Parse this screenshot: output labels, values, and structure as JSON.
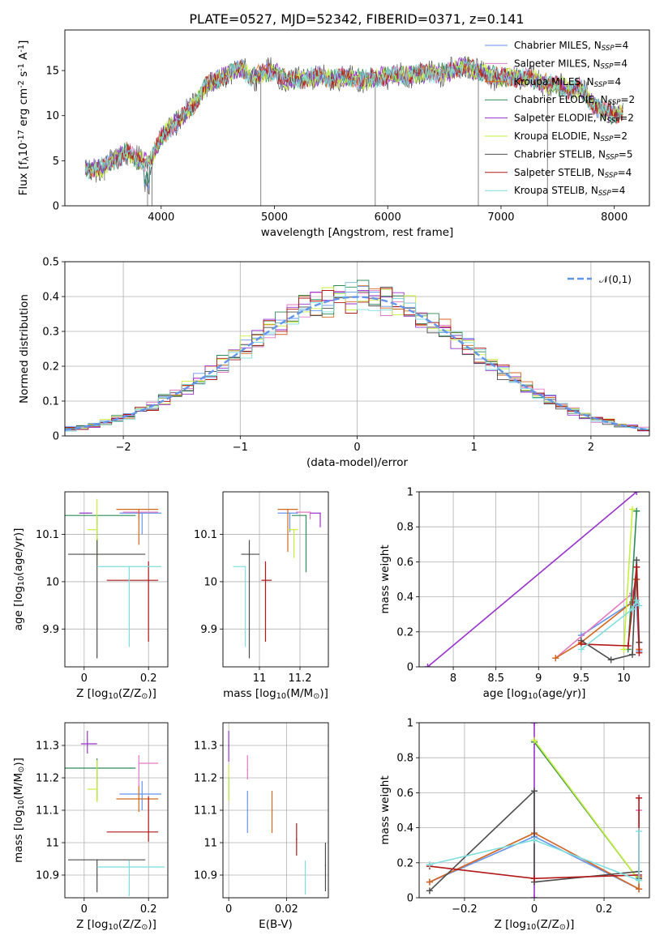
{
  "figure_title": "PLATE=0527, MJD=52342, FIBERID=0371, z=0.141",
  "models": [
    {
      "name": "Chabrier MILES, N$_{SSP}$=4",
      "color": "#6495ed"
    },
    {
      "name": "Salpeter MILES, N$_{SSP}$=4",
      "color": "#e377c2"
    },
    {
      "name": "Kroupa MILES, N$_{SSP}$=4",
      "color": "#d2691e"
    },
    {
      "name": "Chabrier ELODIE, N$_{SSP}$=2",
      "color": "#2e8b57"
    },
    {
      "name": "Salpeter ELODIE, N$_{SSP}$=2",
      "color": "#9932cc"
    },
    {
      "name": "Kroupa ELODIE, N$_{SSP}$=2",
      "color": "#c6f03c"
    },
    {
      "name": "Chabrier STELIB, N$_{SSP}$=5",
      "color": "#4d4d4d"
    },
    {
      "name": "Salpeter STELIB, N$_{SSP}$=4",
      "color": "#b21818"
    },
    {
      "name": "Kroupa STELIB, N$_{SSP}$=4",
      "color": "#7fdede"
    }
  ],
  "chart_data": [
    {
      "id": "spectrum",
      "type": "line",
      "xlabel": "wavelength [Angstrom, rest frame]",
      "ylabel": "Flux [f$_\\lambda$10$^{-17}$ erg cm$^{-2}$ s$^{-1}$ A$^{-1}$]",
      "xlim": [
        3150,
        8310
      ],
      "ylim": [
        0,
        19.5
      ],
      "xticks": [
        4000,
        5000,
        6000,
        7000,
        8000
      ],
      "yticks": [
        0,
        5,
        10,
        15
      ],
      "legend": "top-right",
      "continuum": {
        "x": [
          3330,
          3400,
          3500,
          3600,
          3700,
          3800,
          3900,
          4000,
          4100,
          4200,
          4300,
          4400,
          4500,
          4600,
          4700,
          4800,
          4900,
          5000,
          5100,
          5200,
          5300,
          5400,
          5500,
          5600,
          5700,
          5800,
          5900,
          6000,
          6100,
          6200,
          6300,
          6400,
          6500,
          6600,
          6700,
          6800,
          6900,
          7000,
          7100,
          7200,
          7300,
          7400,
          7500,
          7600,
          7700,
          7800,
          7900,
          8000,
          8080
        ],
        "y": [
          4.1,
          4.1,
          4.3,
          5.2,
          6.0,
          5.0,
          4.9,
          7.6,
          9.0,
          10.0,
          11.3,
          13.4,
          14.0,
          14.7,
          15.2,
          14.2,
          14.7,
          15.0,
          14.0,
          14.0,
          14.1,
          14.4,
          14.1,
          14.2,
          14.2,
          14.0,
          14.2,
          14.5,
          14.4,
          14.4,
          14.7,
          14.7,
          14.8,
          15.1,
          15.6,
          14.7,
          14.5,
          14.2,
          14.3,
          14.2,
          14.0,
          13.6,
          13.3,
          13.0,
          13.1,
          11.4,
          10.5,
          10.1,
          10.5
        ]
      }
    },
    {
      "id": "residuals",
      "type": "histogram",
      "xlabel": "(data-model)/error",
      "ylabel": "Normed distribution",
      "xlim": [
        -2.5,
        2.5
      ],
      "ylim": [
        0,
        0.5
      ],
      "xticks": [
        -2,
        -1,
        0,
        1,
        2
      ],
      "yticks": [
        0.0,
        0.1,
        0.2,
        0.3,
        0.4,
        0.5
      ],
      "grid": true,
      "reference_curve": "$\\mathcal{N}(0,1)$",
      "legend": "top-right"
    },
    {
      "id": "age-vs-Z",
      "type": "scatter",
      "xlabel": "Z [log$_{10}$(Z/Z$_\\odot$)]",
      "ylabel": "age  [log$_{10}$(age/yr)]",
      "xlim": [
        -0.06,
        0.26
      ],
      "ylim": [
        9.82,
        10.19
      ],
      "xticks": [
        0.0,
        0.2
      ],
      "yticks": [
        9.9,
        10.0,
        10.1
      ],
      "grid": true,
      "points": [
        {
          "model": 0,
          "x": 0.18,
          "y": 10.145,
          "xerr": [
            0.07,
            0.06
          ],
          "yerr": [
            0.045,
            0.0
          ]
        },
        {
          "model": 1,
          "x": 0.17,
          "y": 10.147,
          "xerr": [
            0.05,
            0.06
          ],
          "yerr": [
            0.015,
            0.0
          ]
        },
        {
          "model": 2,
          "x": 0.17,
          "y": 10.153,
          "xerr": [
            0.07,
            0.06
          ],
          "yerr": [
            0.075,
            0.0
          ]
        },
        {
          "model": 3,
          "x": 0.04,
          "y": 10.14,
          "xerr": [
            0.1,
            0.12
          ],
          "yerr": [
            0.08,
            0.0
          ]
        },
        {
          "model": 4,
          "x": 0.01,
          "y": 10.145,
          "xerr": [
            0.025,
            0.015
          ],
          "yerr": [
            0.0,
            0.0
          ]
        },
        {
          "model": 5,
          "x": 0.04,
          "y": 10.11,
          "xerr": [
            0.03,
            0.0
          ],
          "yerr": [
            0.08,
            0.065
          ]
        },
        {
          "model": 6,
          "x": 0.04,
          "y": 10.058,
          "xerr": [
            0.09,
            0.15
          ],
          "yerr": [
            0.22,
            0.03
          ]
        },
        {
          "model": 7,
          "x": 0.2,
          "y": 10.003,
          "xerr": [
            0.13,
            0.03
          ],
          "yerr": [
            0.13,
            0.04
          ]
        },
        {
          "model": 8,
          "x": 0.14,
          "y": 10.032,
          "xerr": [
            0.1,
            0.1
          ],
          "yerr": [
            0.17,
            0.0
          ]
        }
      ]
    },
    {
      "id": "age-vs-mass",
      "type": "scatter",
      "xlabel": "mass [log$_{10}$(M/M$_\\odot$)]",
      "ylabel": "",
      "xlim": [
        10.82,
        11.34
      ],
      "ylim": [
        9.82,
        10.19
      ],
      "xticks": [
        11.0,
        11.2
      ],
      "yticks": [
        9.9,
        10.0,
        10.1
      ],
      "grid": true,
      "points": [
        {
          "model": 0,
          "x": 11.15,
          "y": 10.145,
          "xerr": [
            0.06,
            0.04
          ],
          "yerr": [
            0.04,
            0.0
          ]
        },
        {
          "model": 1,
          "x": 11.25,
          "y": 10.147,
          "xerr": [
            0.07,
            0.0
          ],
          "yerr": [
            0.015,
            0.0
          ]
        },
        {
          "model": 2,
          "x": 11.14,
          "y": 10.153,
          "xerr": [
            0.05,
            0.05
          ],
          "yerr": [
            0.09,
            0.0
          ]
        },
        {
          "model": 3,
          "x": 11.23,
          "y": 10.14,
          "xerr": [
            0.07,
            0.0
          ],
          "yerr": [
            0.12,
            0.0
          ]
        },
        {
          "model": 4,
          "x": 11.3,
          "y": 10.145,
          "xerr": [
            0.05,
            0.0
          ],
          "yerr": [
            0.03,
            0.0
          ]
        },
        {
          "model": 5,
          "x": 11.17,
          "y": 10.11,
          "xerr": [
            0.03,
            0.02
          ],
          "yerr": [
            0.06,
            0.0
          ]
        },
        {
          "model": 6,
          "x": 10.95,
          "y": 10.058,
          "xerr": [
            0.04,
            0.05
          ],
          "yerr": [
            0.22,
            0.03
          ]
        },
        {
          "model": 7,
          "x": 11.03,
          "y": 10.003,
          "xerr": [
            0.02,
            0.03
          ],
          "yerr": [
            0.13,
            0.04
          ]
        },
        {
          "model": 8,
          "x": 10.93,
          "y": 10.032,
          "xerr": [
            0.06,
            0.0
          ],
          "yerr": [
            0.17,
            0.0
          ]
        }
      ]
    },
    {
      "id": "mass-weight-vs-age",
      "type": "line",
      "xlabel": "age  [log$_{10}$(age/yr)]",
      "ylabel": "mass weight",
      "xlim": [
        7.6,
        10.3
      ],
      "ylim": [
        0,
        1
      ],
      "xticks": [
        8.0,
        8.5,
        9.0,
        9.5,
        10.0
      ],
      "yticks": [
        0.0,
        0.2,
        0.4,
        0.6,
        0.8,
        1.0
      ],
      "grid": true,
      "series": [
        {
          "model": 0,
          "x": [
            9.5,
            10.1,
            10.15,
            10.18
          ],
          "y": [
            0.18,
            0.37,
            0.35,
            0.09
          ]
        },
        {
          "model": 1,
          "x": [
            9.2,
            10.1,
            10.15,
            10.18
          ],
          "y": [
            0.05,
            0.42,
            0.5,
            0.1
          ]
        },
        {
          "model": 2,
          "x": [
            9.2,
            9.5,
            10.1,
            10.15,
            10.18
          ],
          "y": [
            0.05,
            0.14,
            0.37,
            0.5,
            0.1
          ]
        },
        {
          "model": 3,
          "x": [
            10.05,
            10.15
          ],
          "y": [
            0.1,
            0.89
          ]
        },
        {
          "model": 4,
          "x": [
            7.7,
            10.15
          ],
          "y": [
            0.0,
            1.0
          ]
        },
        {
          "model": 5,
          "x": [
            10.0,
            10.1
          ],
          "y": [
            0.1,
            0.9
          ]
        },
        {
          "model": 6,
          "x": [
            9.5,
            9.85,
            10.1,
            10.15,
            10.18
          ],
          "y": [
            0.15,
            0.04,
            0.07,
            0.61,
            0.14
          ]
        },
        {
          "model": 7,
          "x": [
            9.5,
            10.05,
            10.15,
            10.18
          ],
          "y": [
            0.13,
            0.12,
            0.57,
            0.08
          ]
        },
        {
          "model": 8,
          "x": [
            9.5,
            10.1,
            10.15,
            10.18
          ],
          "y": [
            0.1,
            0.33,
            0.38,
            0.35
          ]
        }
      ]
    },
    {
      "id": "mass-vs-Z",
      "type": "scatter",
      "xlabel": "Z [log$_{10}$(Z/Z$_\\odot$)]",
      "ylabel": "mass [log$_{10}$(M/M$_\\odot$)]",
      "xlim": [
        -0.06,
        0.26
      ],
      "ylim": [
        10.83,
        11.37
      ],
      "xticks": [
        0.0,
        0.2
      ],
      "yticks": [
        10.9,
        11.0,
        11.1,
        11.2,
        11.3
      ],
      "grid": true,
      "points": [
        {
          "model": 0,
          "x": 0.18,
          "y": 11.15,
          "xerr": [
            0.07,
            0.06
          ],
          "yerr": [
            0.05,
            0.04
          ]
        },
        {
          "model": 1,
          "x": 0.17,
          "y": 11.245,
          "xerr": [
            0.0,
            0.06
          ],
          "yerr": [
            0.07,
            0.025
          ]
        },
        {
          "model": 2,
          "x": 0.17,
          "y": 11.135,
          "xerr": [
            0.07,
            0.06
          ],
          "yerr": [
            0.04,
            0.04
          ]
        },
        {
          "model": 3,
          "x": 0.04,
          "y": 11.23,
          "xerr": [
            0.1,
            0.12
          ],
          "yerr": [
            0.1,
            0.03
          ]
        },
        {
          "model": 4,
          "x": 0.01,
          "y": 11.305,
          "xerr": [
            0.02,
            0.03
          ],
          "yerr": [
            0.03,
            0.04
          ]
        },
        {
          "model": 5,
          "x": 0.04,
          "y": 11.165,
          "xerr": [
            0.03,
            0.0
          ],
          "yerr": [
            0.04,
            0.09
          ]
        },
        {
          "model": 6,
          "x": 0.04,
          "y": 10.947,
          "xerr": [
            0.09,
            0.15
          ],
          "yerr": [
            0.1,
            0.0
          ]
        },
        {
          "model": 7,
          "x": 0.2,
          "y": 11.033,
          "xerr": [
            0.13,
            0.03
          ],
          "yerr": [
            0.03,
            0.11
          ]
        },
        {
          "model": 8,
          "x": 0.14,
          "y": 10.925,
          "xerr": [
            0.1,
            0.11
          ],
          "yerr": [
            0.09,
            0.02
          ]
        }
      ]
    },
    {
      "id": "mass-vs-ebv",
      "type": "scatter",
      "xlabel": "E(B-V)",
      "ylabel": "",
      "xlim": [
        -0.002,
        0.0345
      ],
      "ylim": [
        10.83,
        11.37
      ],
      "xticks": [
        0.0,
        0.02
      ],
      "yticks": [
        10.9,
        11.0,
        11.1,
        11.2,
        11.3
      ],
      "grid": true,
      "points": [
        {
          "model": 0,
          "x": 0.0065,
          "y": 11.1,
          "yerr": [
            0.07,
            0.06
          ]
        },
        {
          "model": 1,
          "x": 0.0065,
          "y": 11.225,
          "yerr": [
            0.03,
            0.045
          ]
        },
        {
          "model": 2,
          "x": 0.015,
          "y": 11.1,
          "yerr": [
            0.07,
            0.06
          ]
        },
        {
          "model": 3,
          "x": 0.0,
          "y": 11.2,
          "yerr": [
            0.07,
            0.0
          ]
        },
        {
          "model": 4,
          "x": 0.0,
          "y": 11.3,
          "yerr": [
            0.05,
            0.045
          ]
        },
        {
          "model": 5,
          "x": 0.0,
          "y": 11.18,
          "yerr": [
            0.05,
            0.06
          ]
        },
        {
          "model": 6,
          "x": 0.0335,
          "y": 10.93,
          "yerr": [
            0.08,
            0.07
          ]
        },
        {
          "model": 7,
          "x": 0.0235,
          "y": 11.01,
          "yerr": [
            0.05,
            0.05
          ]
        },
        {
          "model": 8,
          "x": 0.0265,
          "y": 10.9,
          "yerr": [
            0.06,
            0.045
          ]
        }
      ]
    },
    {
      "id": "mass-weight-vs-Z",
      "type": "line",
      "xlabel": "Z [log$_{10}$(Z/Z$_\\odot$)]",
      "ylabel": "mass weight",
      "xlim": [
        -0.33,
        0.33
      ],
      "ylim": [
        0,
        1
      ],
      "xticks": [
        -0.2,
        0.0,
        0.2
      ],
      "yticks": [
        0.0,
        0.2,
        0.4,
        0.6,
        0.8,
        1.0
      ],
      "grid": true,
      "series": [
        {
          "model": 0,
          "x": [
            -0.3,
            0.0,
            0.3,
            0.3
          ],
          "y": [
            0.09,
            0.35,
            0.05,
            0.12
          ]
        },
        {
          "model": 1,
          "x": [
            -0.3,
            0.0,
            0.3,
            0.3
          ],
          "y": [
            0.09,
            0.37,
            0.05,
            0.5
          ]
        },
        {
          "model": 2,
          "x": [
            -0.3,
            0.0,
            0.3,
            0.3
          ],
          "y": [
            0.09,
            0.37,
            0.05,
            0.12
          ]
        },
        {
          "model": 3,
          "x": [
            0.0,
            0.3
          ],
          "y": [
            0.89,
            0.1
          ]
        },
        {
          "model": 4,
          "x": [
            0.0,
            0.0
          ],
          "y": [
            0.0,
            1.0
          ]
        },
        {
          "model": 5,
          "x": [
            0.0,
            0.3
          ],
          "y": [
            0.9,
            0.1
          ]
        },
        {
          "model": 6,
          "x": [
            -0.3,
            0.0,
            0.0,
            0.3,
            0.3
          ],
          "y": [
            0.04,
            0.61,
            0.09,
            0.15,
            0.11
          ]
        },
        {
          "model": 7,
          "x": [
            -0.3,
            0.0,
            0.3,
            0.3
          ],
          "y": [
            0.18,
            0.11,
            0.13,
            0.57
          ]
        },
        {
          "model": 8,
          "x": [
            -0.3,
            0.0,
            0.3,
            0.3
          ],
          "y": [
            0.19,
            0.33,
            0.1,
            0.38
          ]
        }
      ]
    }
  ]
}
